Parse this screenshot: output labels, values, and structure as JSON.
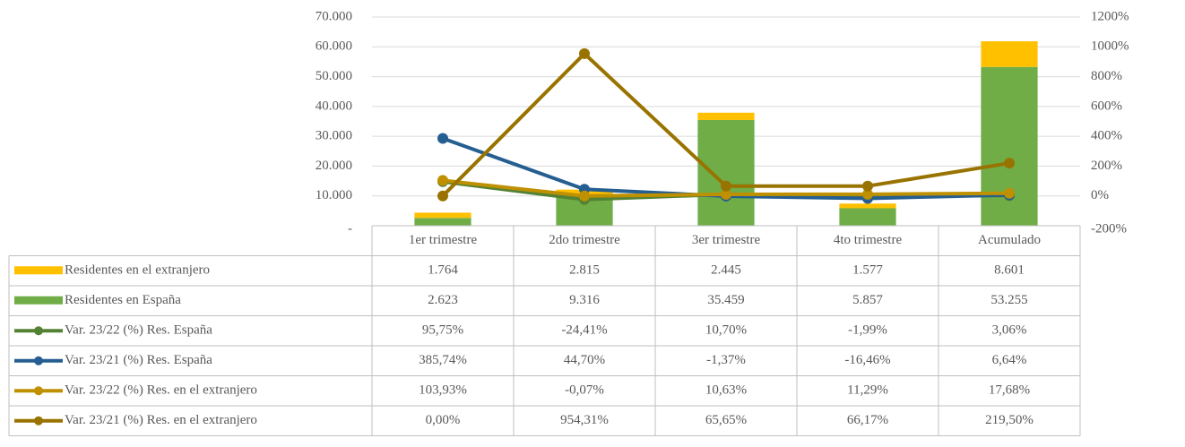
{
  "chart_data": {
    "type": "bar",
    "stacked": true,
    "categories": [
      "1er trimestre",
      "2do trimestre",
      "3er trimestre",
      "4to trimestre",
      "Acumulado"
    ],
    "ylim": [
      0,
      70000
    ],
    "yticks": [
      {
        "value": 0,
        "label": "-"
      },
      {
        "value": 10000,
        "label": "10.000"
      },
      {
        "value": 20000,
        "label": "20.000"
      },
      {
        "value": 30000,
        "label": "30.000"
      },
      {
        "value": 40000,
        "label": "40.000"
      },
      {
        "value": 50000,
        "label": "50.000"
      },
      {
        "value": 60000,
        "label": "60.000"
      },
      {
        "value": 70000,
        "label": "70.000"
      }
    ],
    "y2lim": [
      -200,
      1200
    ],
    "y2ticks": [
      {
        "value": -200,
        "label": "-200%"
      },
      {
        "value": 0,
        "label": "0%"
      },
      {
        "value": 200,
        "label": "200%"
      },
      {
        "value": 400,
        "label": "400%"
      },
      {
        "value": 600,
        "label": "600%"
      },
      {
        "value": 800,
        "label": "800%"
      },
      {
        "value": 1000,
        "label": "1000%"
      },
      {
        "value": 1200,
        "label": "1200%"
      }
    ],
    "grid": true,
    "series": [
      {
        "name": "Residentes en el extranjero",
        "type": "bar",
        "color": "#ffc000",
        "values": [
          1764,
          2815,
          2445,
          1577,
          8601
        ],
        "value_labels": [
          "1.764",
          "2.815",
          "2.445",
          "1.577",
          "8.601"
        ]
      },
      {
        "name": "Residentes en España",
        "type": "bar",
        "color": "#70ad47",
        "values": [
          2623,
          9316,
          35459,
          5857,
          53255
        ],
        "value_labels": [
          "2.623",
          "9.316",
          "35.459",
          "5.857",
          "53.255"
        ]
      },
      {
        "name": "Var. 23/22 (%) Res. España",
        "type": "line",
        "axis": "y2",
        "color": "#548235",
        "values": [
          95.75,
          -24.41,
          10.7,
          -1.99,
          3.06
        ],
        "value_labels": [
          "95,75%",
          "-24,41%",
          "10,70%",
          "-1,99%",
          "3,06%"
        ]
      },
      {
        "name": "Var. 23/21 (%) Res. España",
        "type": "line",
        "axis": "y2",
        "color": "#255e91",
        "values": [
          385.74,
          44.7,
          -1.37,
          -16.46,
          6.64
        ],
        "value_labels": [
          "385,74%",
          "44,70%",
          "-1,37%",
          "-16,46%",
          "6,64%"
        ]
      },
      {
        "name": "Var. 23/22 (%) Res. en el extranjero",
        "type": "line",
        "axis": "y2",
        "color": "#bf9000",
        "values": [
          103.93,
          -0.07,
          10.63,
          11.29,
          17.68
        ],
        "value_labels": [
          "103,93%",
          "-0,07%",
          "10,63%",
          "11,29%",
          "17,68%"
        ]
      },
      {
        "name": "Var. 23/21 (%) Res. en el extranjero",
        "type": "line",
        "axis": "y2",
        "color": "#997300",
        "values": [
          0.0,
          954.31,
          65.65,
          66.17,
          219.5
        ],
        "value_labels": [
          "0,00%",
          "954,31%",
          "65,65%",
          "66,17%",
          "219,50%"
        ]
      }
    ]
  }
}
